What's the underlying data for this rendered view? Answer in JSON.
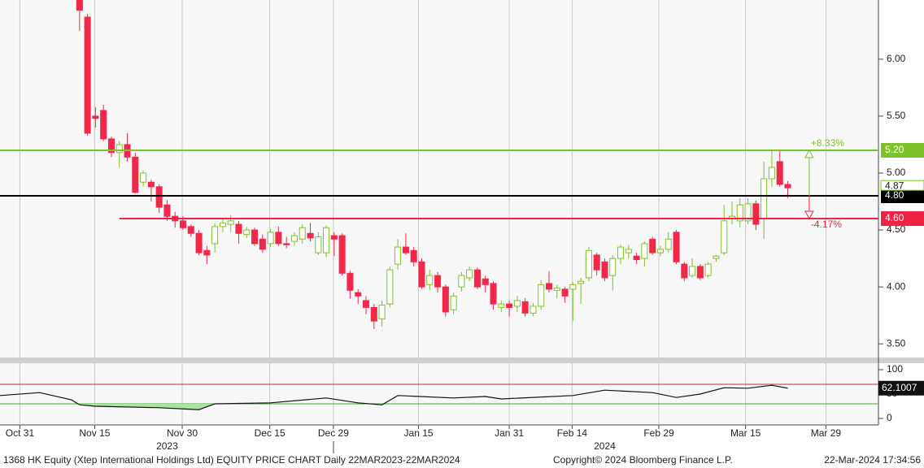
{
  "chart_data": [
    {
      "type": "candlestick",
      "xlim": [
        -10,
        100.4
      ],
      "xticks": [
        {
          "value": -7.5,
          "label": "Oct 31"
        },
        {
          "value": 1.9,
          "label": "Nov 15"
        },
        {
          "value": 12.9,
          "label": "Nov 30"
        },
        {
          "value": 23.9,
          "label": "Dec 15"
        },
        {
          "value": 31.9,
          "label": "Dec 29"
        },
        {
          "value": 42.6,
          "label": "Jan 15"
        },
        {
          "value": 54,
          "label": "Jan 31"
        },
        {
          "value": 61.9,
          "label": "Feb 14"
        },
        {
          "value": 72.8,
          "label": "Feb 29"
        },
        {
          "value": 83.7,
          "label": "Mar 15"
        },
        {
          "value": 93.8,
          "label": "Mar 29"
        }
      ],
      "year_ticks": [
        {
          "value": 11,
          "label": "2023"
        },
        {
          "value": 66,
          "label": "2024"
        }
      ],
      "ylim": [
        3.38,
        6.52
      ],
      "yticks": [
        {
          "value": 3.5,
          "label": "3.50"
        },
        {
          "value": 4,
          "label": "4.00"
        },
        {
          "value": 4.5,
          "label": "4.50"
        },
        {
          "value": 5,
          "label": "5.00"
        },
        {
          "value": 5.5,
          "label": "5.50"
        },
        {
          "value": 6,
          "label": "6.00"
        }
      ],
      "up_color": "#7dc12b",
      "down_color": "#f0284a",
      "x": [
        0,
        1,
        2,
        3,
        4,
        5,
        6,
        7,
        8,
        9,
        10,
        11,
        12,
        13,
        14,
        15,
        16,
        17,
        18,
        19,
        20,
        21,
        22,
        23,
        24,
        25,
        26,
        27,
        28,
        29,
        30,
        31,
        32,
        33,
        34,
        35,
        36,
        37,
        38,
        39,
        40,
        41,
        42,
        43,
        44,
        45,
        46,
        47,
        48,
        49,
        50,
        51,
        52,
        53,
        54,
        55,
        56,
        57,
        58,
        59,
        60,
        61,
        62,
        63,
        64,
        65,
        66,
        67,
        68,
        69,
        70,
        71,
        72,
        73,
        74,
        75,
        76,
        77,
        78,
        79,
        80,
        81,
        82,
        83,
        84,
        85,
        86,
        87,
        88,
        89
      ],
      "open": [
        6.52,
        6.37,
        5.5,
        5.55,
        5.3,
        5.18,
        5.25,
        5.14,
        4.92,
        4.92,
        4.88,
        4.72,
        4.62,
        4.58,
        4.53,
        4.47,
        4.32,
        4.38,
        4.53,
        4.55,
        4.55,
        4.46,
        4.5,
        4.42,
        4.38,
        4.48,
        4.38,
        4.4,
        4.42,
        4.47,
        4.3,
        4.3,
        4.45,
        4.45,
        4.12,
        3.95,
        3.88,
        3.82,
        3.72,
        3.85,
        4.2,
        4.35,
        4.32,
        4.22,
        4.02,
        4.1,
        4.0,
        3.8,
        4.0,
        4.08,
        4.15,
        4.07,
        4.03,
        3.82,
        3.85,
        3.83,
        3.87,
        3.77,
        3.83,
        4.03,
        3.97,
        3.98,
        3.98,
        4.03,
        4.08,
        4.28,
        4.22,
        4.1,
        4.25,
        4.3,
        4.27,
        4.25,
        4.42,
        4.3,
        4.33,
        4.48,
        4.2,
        4.1,
        4.18,
        4.1,
        4.25,
        4.3,
        4.6,
        4.58,
        4.58,
        4.73,
        4.6,
        4.95,
        5.1,
        4.9
      ],
      "high": [
        6.55,
        6.4,
        5.58,
        5.6,
        5.32,
        5.28,
        5.35,
        5.18,
        5.02,
        4.94,
        4.9,
        4.76,
        4.66,
        4.62,
        4.55,
        4.5,
        4.36,
        4.56,
        4.6,
        4.63,
        4.58,
        4.53,
        4.52,
        4.46,
        4.51,
        4.53,
        4.44,
        4.48,
        4.55,
        4.56,
        4.48,
        4.54,
        4.48,
        4.47,
        4.14,
        3.98,
        3.92,
        3.85,
        3.88,
        4.18,
        4.42,
        4.47,
        4.35,
        4.25,
        4.15,
        4.13,
        4.02,
        3.95,
        4.13,
        4.18,
        4.17,
        4.1,
        4.05,
        3.88,
        3.88,
        3.92,
        3.9,
        3.86,
        4.06,
        4.14,
        4.02,
        4.0,
        4.04,
        4.08,
        4.35,
        4.3,
        4.25,
        4.28,
        4.37,
        4.37,
        4.3,
        4.4,
        4.44,
        4.36,
        4.48,
        4.5,
        4.22,
        4.25,
        4.2,
        4.22,
        4.28,
        4.72,
        4.75,
        4.78,
        4.78,
        4.76,
        5.1,
        5.2,
        5.2,
        4.93
      ],
      "low": [
        6.25,
        5.33,
        5.4,
        5.28,
        5.14,
        5.05,
        5.1,
        4.82,
        4.88,
        4.75,
        4.65,
        4.58,
        4.52,
        4.5,
        4.44,
        4.28,
        4.2,
        4.3,
        4.48,
        4.48,
        4.38,
        4.43,
        4.36,
        4.3,
        4.35,
        4.36,
        4.34,
        4.36,
        4.38,
        4.4,
        4.28,
        4.26,
        4.27,
        4.1,
        3.9,
        3.85,
        3.76,
        3.63,
        3.65,
        3.82,
        4.15,
        4.28,
        4.18,
        3.98,
        3.97,
        3.95,
        3.74,
        3.76,
        3.96,
        4.05,
        3.98,
        3.95,
        3.8,
        3.78,
        3.74,
        3.78,
        3.74,
        3.74,
        3.8,
        3.95,
        3.9,
        3.86,
        3.7,
        3.85,
        4.05,
        4.1,
        4.05,
        3.97,
        4.2,
        4.25,
        4.2,
        4.18,
        4.28,
        4.27,
        4.3,
        4.2,
        4.05,
        4.08,
        4.06,
        4.08,
        4.22,
        4.28,
        4.55,
        4.52,
        4.55,
        4.5,
        4.42,
        4.88,
        4.88,
        4.78
      ],
      "close": [
        6.43,
        5.35,
        5.48,
        5.3,
        5.18,
        5.25,
        5.14,
        4.83,
        5.0,
        4.88,
        4.7,
        4.62,
        4.58,
        4.52,
        4.47,
        4.3,
        4.28,
        4.53,
        4.56,
        4.58,
        4.47,
        4.5,
        4.38,
        4.33,
        4.48,
        4.38,
        4.37,
        4.45,
        4.52,
        4.43,
        4.44,
        4.52,
        4.42,
        4.12,
        3.97,
        3.92,
        3.82,
        3.7,
        3.84,
        4.15,
        4.35,
        4.3,
        4.22,
        4.0,
        4.1,
        4.0,
        3.78,
        3.92,
        4.1,
        4.15,
        4.0,
        4.02,
        3.85,
        3.85,
        3.82,
        3.88,
        3.77,
        3.83,
        4.02,
        3.98,
        3.99,
        3.92,
        4.02,
        4.05,
        4.32,
        4.15,
        4.08,
        4.25,
        4.35,
        4.33,
        4.24,
        4.38,
        4.3,
        4.33,
        4.42,
        4.22,
        4.08,
        4.18,
        4.08,
        4.2,
        4.27,
        4.58,
        4.62,
        4.72,
        4.73,
        4.55,
        4.95,
        5.05,
        4.9,
        4.87
      ],
      "levels": [
        {
          "value": 5.2,
          "label": "5.20",
          "color": "#7dc12b",
          "x_start": -10
        },
        {
          "value": 4.8,
          "label": "4.80",
          "color": "#000000",
          "x_start": -10
        },
        {
          "value": 4.6,
          "label": "4.60",
          "color": "#ee2244",
          "x_start": 5
        }
      ],
      "annotations": [
        {
          "text": "+8.33%",
          "from": 4.8,
          "to": 5.2,
          "x": 91.7,
          "color": "#7dc12b"
        },
        {
          "text": "-4.17%",
          "from": 4.8,
          "to": 4.6,
          "x": 91.7,
          "color": "#ee2244"
        }
      ],
      "grid": true
    },
    {
      "type": "line",
      "x": [
        -10,
        -5,
        -1,
        0,
        2,
        10,
        15,
        17,
        24,
        31,
        35,
        38,
        40,
        47,
        51,
        53,
        62,
        66,
        72,
        75,
        78,
        81,
        84,
        87,
        89
      ],
      "values": [
        47,
        53,
        38,
        28,
        25,
        22,
        18,
        30,
        32,
        42,
        32,
        28,
        47,
        42,
        45,
        40,
        47,
        58,
        53,
        43,
        50,
        63,
        62,
        68,
        62.1007
      ],
      "ylim": [
        -13.3,
        113.3
      ],
      "yticks": [
        0,
        50,
        100
      ],
      "levels": [
        {
          "value": 70,
          "color": "#cc2233"
        },
        {
          "value": 30,
          "color": "#33aa33"
        }
      ],
      "color": "#111111",
      "fill_below": 30,
      "fill_color": "#a8e6a0"
    }
  ],
  "footer": {
    "left": "1368 HK Equity (Xtep International Holdings Ltd) EQUITY PRICE CHART  Daily 22MAR2023-22MAR2024",
    "center": "Copyright© 2024 Bloomberg Finance L.P.",
    "right": "22-Mar-2024 17:34:56"
  }
}
